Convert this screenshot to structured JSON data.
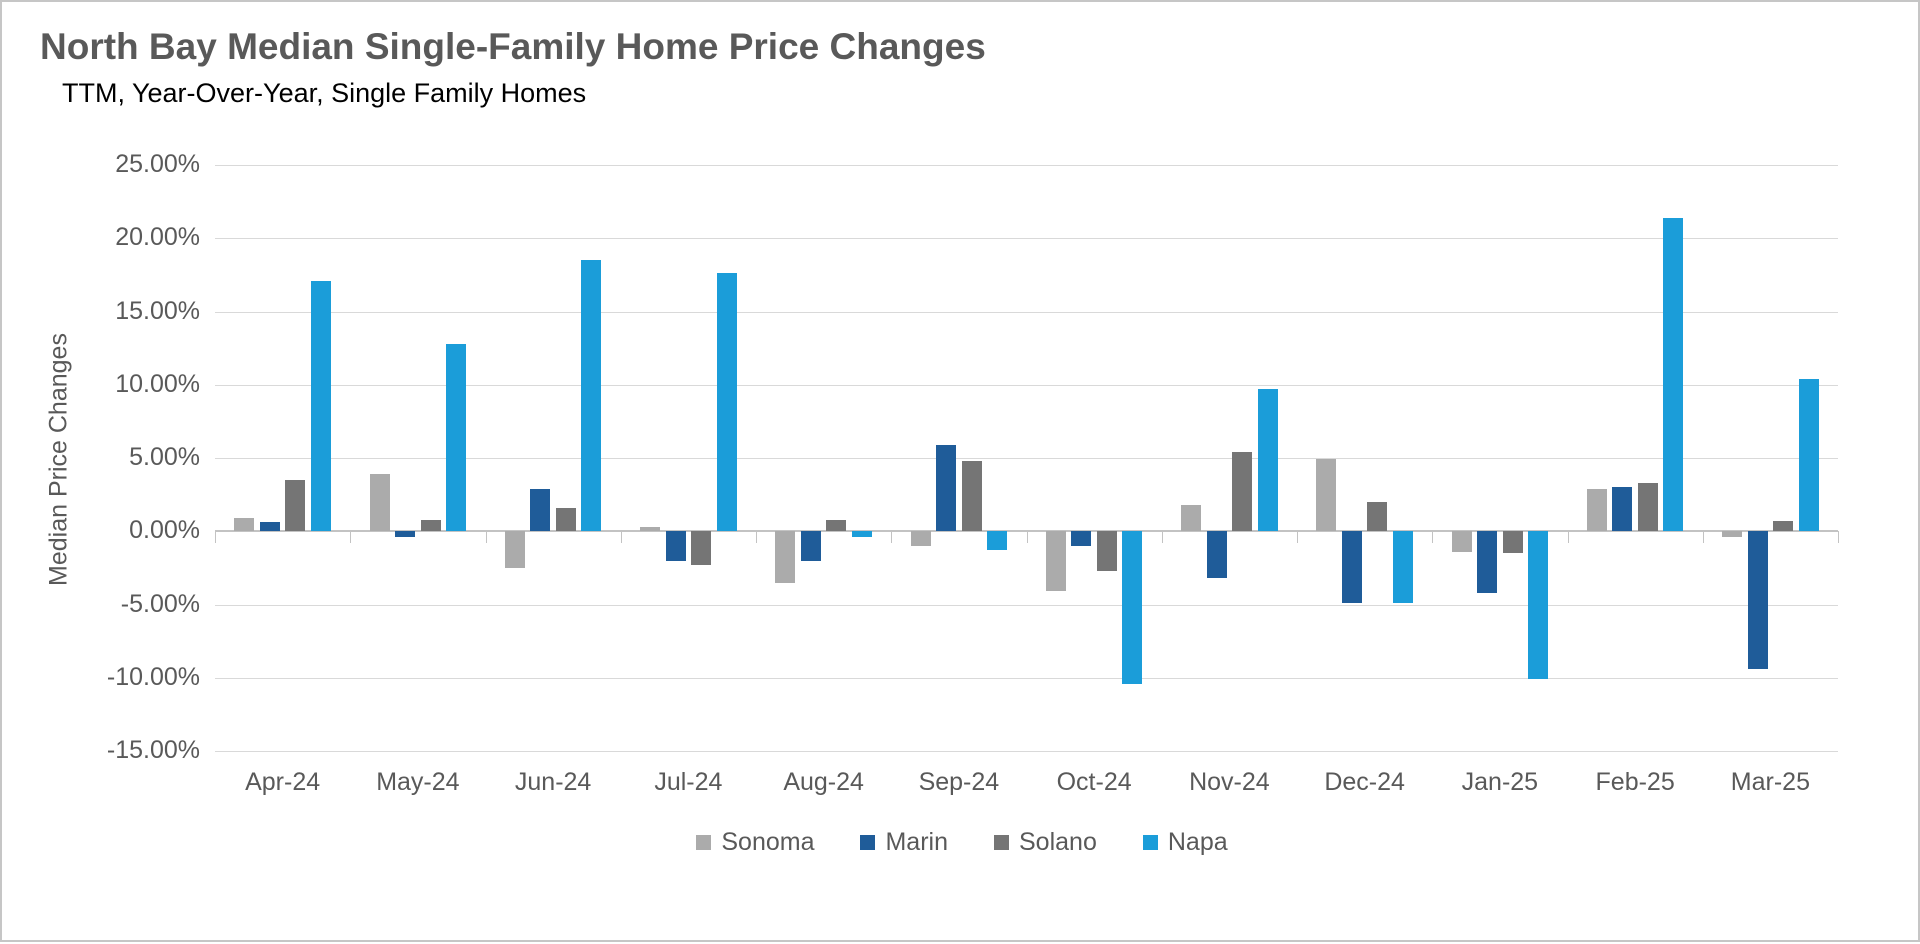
{
  "page": {
    "background_color": "#FFFFFF",
    "border_color": "#C6C6C6",
    "gridline_color": "#D9D9D9",
    "axis_line_color": "#C3C3C3",
    "text_color": "#595959"
  },
  "header": {
    "title": "North Bay Median Single-Family Home Price Changes",
    "subtitle": "TTM, Year-Over-Year, Single Family Homes"
  },
  "chart_data": {
    "type": "bar",
    "title": "North Bay Median Single-Family Home Price Changes",
    "subtitle": "TTM, Year-Over-Year, Single Family Homes",
    "xlabel": "",
    "ylabel": "Median Price Changes",
    "ylim": [
      -15,
      25
    ],
    "ytick_step": 5,
    "ytick_labels": [
      "25.00%",
      "20.00%",
      "15.00%",
      "10.00%",
      "5.00%",
      "0.00%",
      "-5.00%",
      "-10.00%",
      "-15.00%"
    ],
    "grid": true,
    "legend_position": "bottom",
    "categories": [
      "Apr-24",
      "May-24",
      "Jun-24",
      "Jul-24",
      "Aug-24",
      "Sep-24",
      "Oct-24",
      "Nov-24",
      "Dec-24",
      "Jan-25",
      "Feb-25",
      "Mar-25"
    ],
    "series": [
      {
        "name": "Sonoma",
        "color": "#ABABAB",
        "values": [
          0.9,
          3.9,
          -2.5,
          0.3,
          -3.5,
          -1.0,
          -4.1,
          1.8,
          4.9,
          -1.4,
          2.9,
          -0.4
        ]
      },
      {
        "name": "Marin",
        "color": "#1F5C99",
        "values": [
          0.6,
          -0.4,
          2.9,
          -2.0,
          -2.0,
          5.9,
          -1.0,
          -3.2,
          -4.9,
          -4.2,
          3.0,
          -9.4
        ]
      },
      {
        "name": "Solano",
        "color": "#757575",
        "values": [
          3.5,
          0.8,
          1.6,
          -2.3,
          0.8,
          4.8,
          -2.7,
          5.4,
          2.0,
          -1.5,
          3.3,
          0.7
        ]
      },
      {
        "name": "Napa",
        "color": "#1B9DD9",
        "values": [
          17.1,
          12.8,
          18.5,
          17.6,
          -0.4,
          -1.3,
          -10.4,
          9.7,
          -4.9,
          -10.1,
          21.4,
          10.4
        ]
      }
    ]
  }
}
